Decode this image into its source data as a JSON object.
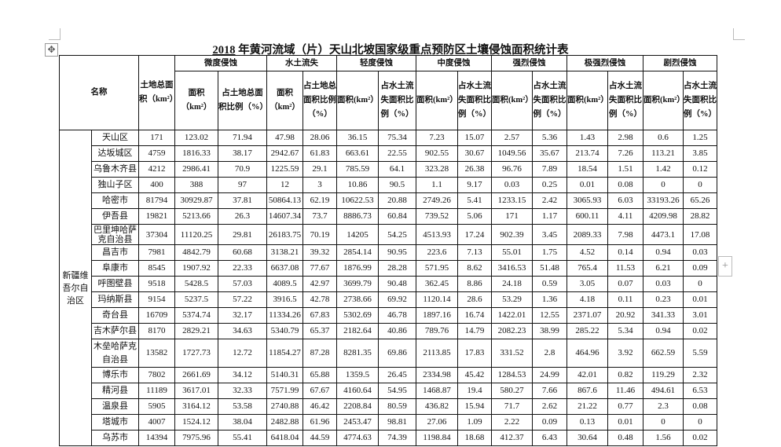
{
  "document": {
    "title_year": "2018",
    "title_rest": " 年黄河流域（片）天山北坡国家级重点预防区土壤侵蚀面积统计表"
  },
  "ui": {
    "move_handle_icon": "move-icon",
    "add_button_icon": "plus-icon",
    "add_button_label": "+"
  },
  "table": {
    "header": {
      "name": "名称",
      "land_total": "土地总面积（km²）",
      "groups": [
        "微度侵蚀",
        "水土流失",
        "轻度侵蚀",
        "中度侵蚀",
        "强烈侵蚀",
        "极强烈侵蚀",
        "剧烈侵蚀"
      ],
      "sub": [
        "面积（km²）",
        "占土地总面积比例（%）",
        "面积（km²）",
        "占土地总面积比例（%）",
        "面积(km²）",
        "占水土流失面积比例（%）",
        "面积(km²）",
        "占水土流失面积比例（%）",
        "面积(km²）",
        "占水土流失面积比例（%）",
        "面积(km²）",
        "占水土流失面积比例（%）",
        "面积(km²）",
        "占水土流失面积比例（%）"
      ]
    },
    "region": "新疆维吾尔自治区",
    "rows": [
      {
        "name": "天山区",
        "v": [
          "171",
          "123.02",
          "71.94",
          "47.98",
          "28.06",
          "36.15",
          "75.34",
          "7.23",
          "15.07",
          "2.57",
          "5.36",
          "1.43",
          "2.98",
          "0.6",
          "1.25"
        ]
      },
      {
        "name": "达坂城区",
        "v": [
          "4759",
          "1816.33",
          "38.17",
          "2942.67",
          "61.83",
          "663.61",
          "22.55",
          "902.55",
          "30.67",
          "1049.56",
          "35.67",
          "213.74",
          "7.26",
          "113.21",
          "3.85"
        ]
      },
      {
        "name": "乌鲁木齐县",
        "v": [
          "4212",
          "2986.41",
          "70.9",
          "1225.59",
          "29.1",
          "785.59",
          "64.1",
          "323.28",
          "26.38",
          "96.76",
          "7.89",
          "18.54",
          "1.51",
          "1.42",
          "0.12"
        ]
      },
      {
        "name": "独山子区",
        "v": [
          "400",
          "388",
          "97",
          "12",
          "3",
          "10.86",
          "90.5",
          "1.1",
          "9.17",
          "0.03",
          "0.25",
          "0.01",
          "0.08",
          "0",
          "0"
        ]
      },
      {
        "name": "哈密市",
        "v": [
          "81794",
          "30929.87",
          "37.81",
          "50864.13",
          "62.19",
          "10622.53",
          "20.88",
          "2749.26",
          "5.41",
          "1233.15",
          "2.42",
          "3065.93",
          "6.03",
          "33193.26",
          "65.26"
        ]
      },
      {
        "name": "伊吾县",
        "v": [
          "19821",
          "5213.66",
          "26.3",
          "14607.34",
          "73.7",
          "8886.73",
          "60.84",
          "739.52",
          "5.06",
          "171",
          "1.17",
          "600.11",
          "4.11",
          "4209.98",
          "28.82"
        ]
      },
      {
        "name": "巴里坤哈萨克自治县",
        "tall": 1,
        "v": [
          "37304",
          "11120.25",
          "29.81",
          "26183.75",
          "70.19",
          "14205",
          "54.25",
          "4513.93",
          "17.24",
          "902.39",
          "3.45",
          "2089.33",
          "7.98",
          "4473.1",
          "17.08"
        ]
      },
      {
        "name": "昌吉市",
        "v": [
          "7981",
          "4842.79",
          "60.68",
          "3138.21",
          "39.32",
          "2854.14",
          "90.95",
          "223.6",
          "7.13",
          "55.01",
          "1.75",
          "4.52",
          "0.14",
          "0.94",
          "0.03"
        ]
      },
      {
        "name": "阜康市",
        "v": [
          "8545",
          "1907.92",
          "22.33",
          "6637.08",
          "77.67",
          "1876.99",
          "28.28",
          "571.95",
          "8.62",
          "3416.53",
          "51.48",
          "765.4",
          "11.53",
          "6.21",
          "0.09"
        ]
      },
      {
        "name": "呼图壁县",
        "v": [
          "9518",
          "5428.5",
          "57.03",
          "4089.5",
          "42.97",
          "3699.79",
          "90.48",
          "362.45",
          "8.86",
          "24.18",
          "0.59",
          "3.05",
          "0.07",
          "0.03",
          "0"
        ]
      },
      {
        "name": "玛纳斯县",
        "v": [
          "9154",
          "5237.5",
          "57.22",
          "3916.5",
          "42.78",
          "2738.66",
          "69.92",
          "1120.14",
          "28.6",
          "53.29",
          "1.36",
          "4.18",
          "0.11",
          "0.23",
          "0.01"
        ]
      },
      {
        "name": "奇台县",
        "v": [
          "16709",
          "5374.74",
          "32.17",
          "11334.26",
          "67.83",
          "5302.69",
          "46.78",
          "1897.16",
          "16.74",
          "1422.01",
          "12.55",
          "2371.07",
          "20.92",
          "341.33",
          "3.01"
        ]
      },
      {
        "name": "吉木萨尔县",
        "v": [
          "8170",
          "2829.21",
          "34.63",
          "5340.79",
          "65.37",
          "2182.64",
          "40.86",
          "789.76",
          "14.79",
          "2082.23",
          "38.99",
          "285.22",
          "5.34",
          "0.94",
          "0.02"
        ]
      },
      {
        "name": "木垒哈萨克自治县",
        "tall": 2,
        "v": [
          "13582",
          "1727.73",
          "12.72",
          "11854.27",
          "87.28",
          "8281.35",
          "69.86",
          "2113.85",
          "17.83",
          "331.52",
          "2.8",
          "464.96",
          "3.92",
          "662.59",
          "5.59"
        ]
      },
      {
        "name": "博乐市",
        "v": [
          "7802",
          "2661.69",
          "34.12",
          "5140.31",
          "65.88",
          "1359.5",
          "26.45",
          "2334.98",
          "45.42",
          "1284.53",
          "24.99",
          "42.01",
          "0.82",
          "119.29",
          "2.32"
        ]
      },
      {
        "name": "精河县",
        "v": [
          "11189",
          "3617.01",
          "32.33",
          "7571.99",
          "67.67",
          "4160.64",
          "54.95",
          "1468.87",
          "19.4",
          "580.27",
          "7.66",
          "867.6",
          "11.46",
          "494.61",
          "6.53"
        ]
      },
      {
        "name": "温泉县",
        "v": [
          "5905",
          "3164.12",
          "53.58",
          "2740.88",
          "46.42",
          "2208.84",
          "80.59",
          "436.82",
          "15.94",
          "71.7",
          "2.62",
          "21.22",
          "0.77",
          "2.3",
          "0.08"
        ]
      },
      {
        "name": "塔城市",
        "v": [
          "4007",
          "1524.12",
          "38.04",
          "2482.88",
          "61.96",
          "2453.47",
          "98.81",
          "27.06",
          "1.09",
          "2.22",
          "0.09",
          "0.13",
          "0.01",
          "0",
          "0"
        ]
      },
      {
        "name": "乌苏市",
        "v": [
          "14394",
          "7975.96",
          "55.41",
          "6418.04",
          "44.59",
          "4774.63",
          "74.39",
          "1198.84",
          "18.68",
          "412.37",
          "6.43",
          "30.64",
          "0.48",
          "1.56",
          "0.02"
        ]
      }
    ]
  }
}
